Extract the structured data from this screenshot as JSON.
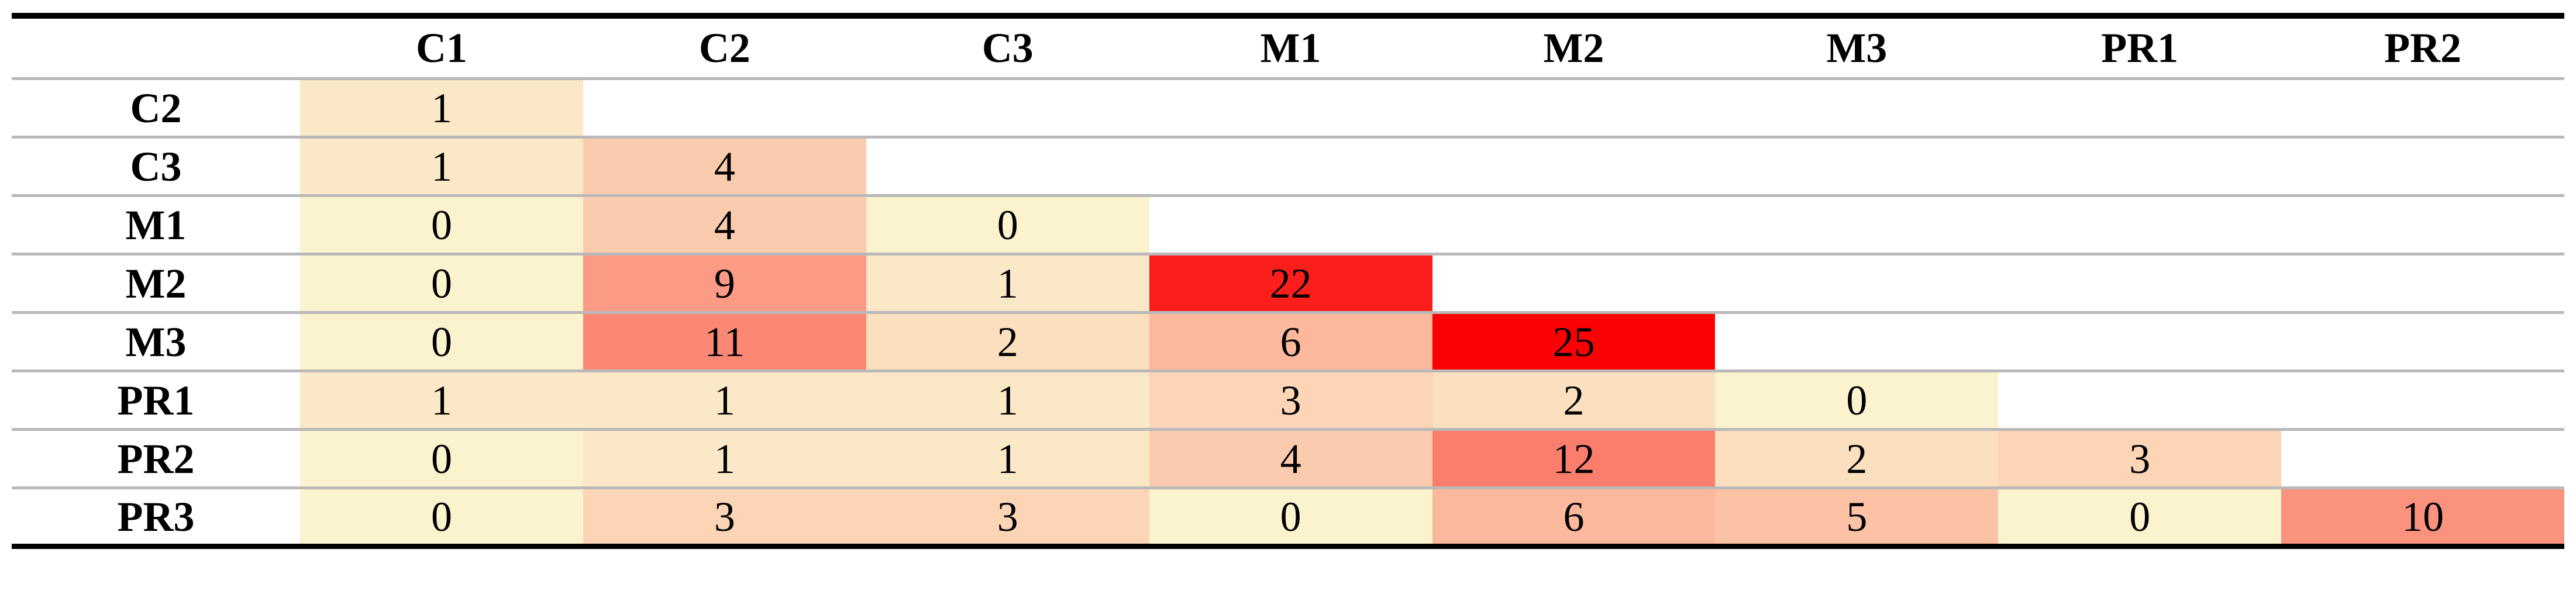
{
  "chart_data": {
    "type": "heatmap",
    "title": "",
    "x_labels": [
      "C1",
      "C2",
      "C3",
      "M1",
      "M2",
      "M3",
      "PR1",
      "PR2"
    ],
    "y_labels": [
      "C2",
      "C3",
      "M1",
      "M2",
      "M3",
      "PR1",
      "PR2",
      "PR3"
    ],
    "rows": [
      {
        "label": "C2",
        "values": [
          1
        ]
      },
      {
        "label": "C3",
        "values": [
          1,
          4
        ]
      },
      {
        "label": "M1",
        "values": [
          0,
          4,
          0
        ]
      },
      {
        "label": "M2",
        "values": [
          0,
          9,
          1,
          22
        ]
      },
      {
        "label": "M3",
        "values": [
          0,
          11,
          2,
          6,
          25
        ]
      },
      {
        "label": "PR1",
        "values": [
          1,
          1,
          1,
          3,
          2,
          0
        ]
      },
      {
        "label": "PR2",
        "values": [
          0,
          1,
          1,
          4,
          12,
          2,
          3
        ]
      },
      {
        "label": "PR3",
        "values": [
          0,
          3,
          3,
          0,
          6,
          5,
          0,
          10
        ]
      }
    ],
    "layout": "lower-triangular",
    "color_scale": {
      "min_value": 0,
      "max_value": 25,
      "min_color": "#FBF2CE",
      "max_color": "#FC0103"
    },
    "rule_color": "#000000",
    "separator_color": "#B9B9B9",
    "corner_label": ""
  }
}
